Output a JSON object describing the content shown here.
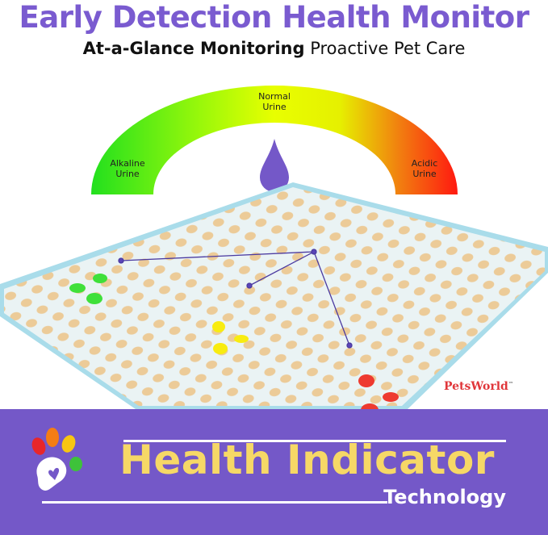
{
  "header": {
    "title": "Early Detection Health Monitor",
    "subtitle_bold": "At-a-Glance Monitoring",
    "subtitle_rest": "Proactive Pet Care"
  },
  "gauge": {
    "left_label_1": "Alkaline",
    "left_label_2": "Urine",
    "center_label_1": "Normal",
    "center_label_2": "Urine",
    "right_label_1": "Acidic",
    "right_label_2": "Urine",
    "colors": [
      "#22e01e",
      "#e8ff00",
      "#ff1a10"
    ],
    "drop_color": "#7458c8",
    "drop_icon": "droplet-icon"
  },
  "pad": {
    "stain_colors": [
      "#3fe03a",
      "#f8ec10",
      "#ee3a30"
    ],
    "brand": "PetsWorld",
    "brand_tm": "™"
  },
  "banner": {
    "headline": "Health Indicator",
    "tagline": "Technology",
    "logo_icon": "rainbow-paw-heart-icon",
    "bg_color": "#7458c8",
    "headline_color": "#f6d866"
  }
}
